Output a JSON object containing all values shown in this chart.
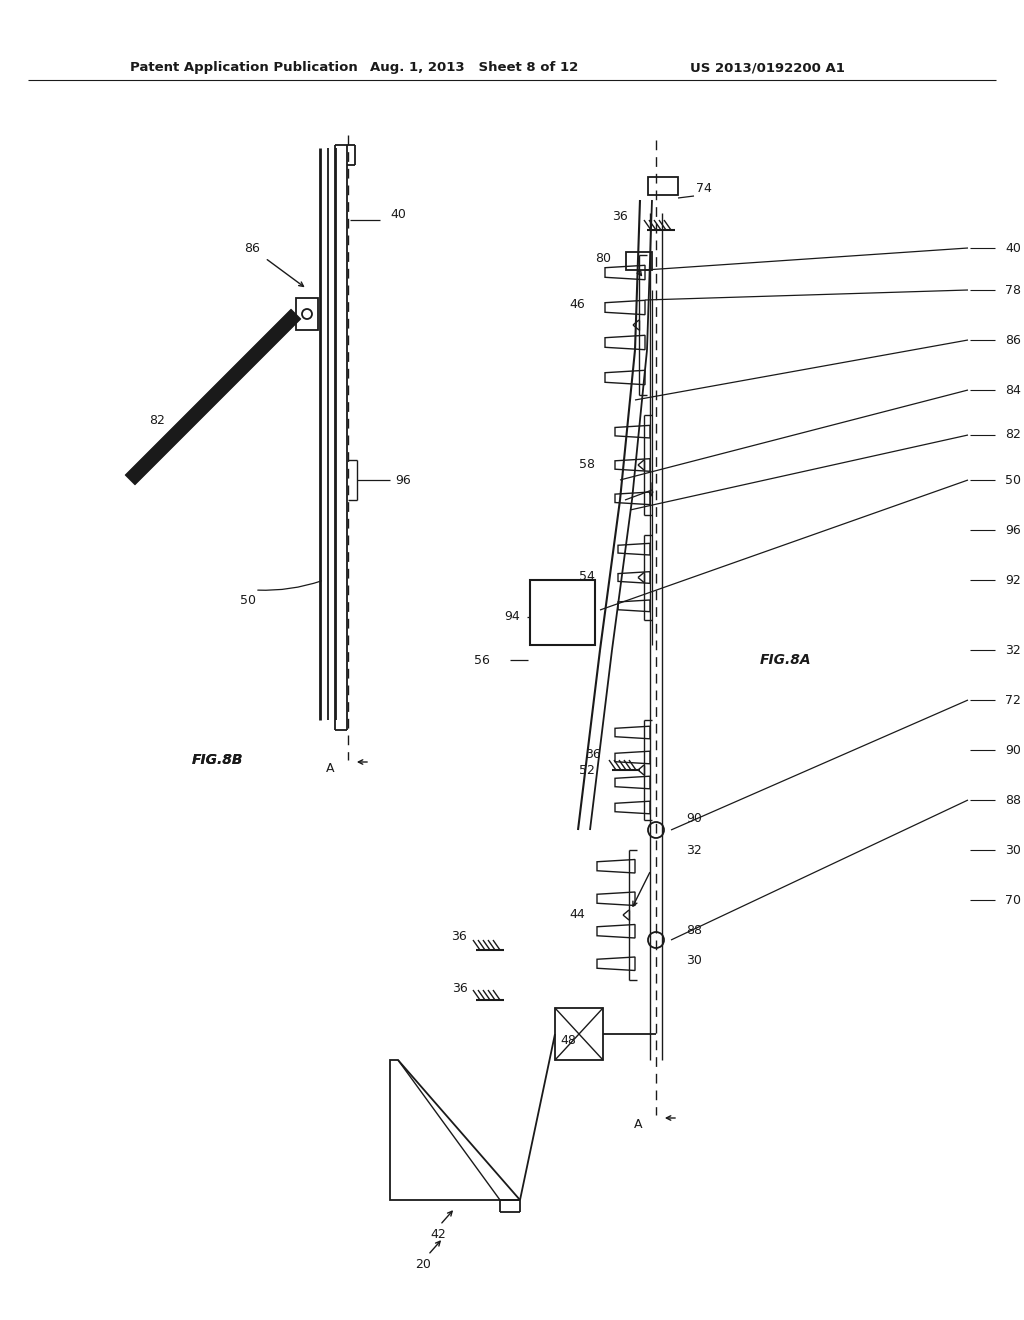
{
  "bg_color": "#ffffff",
  "line_color": "#1a1a1a",
  "header_left": "Patent Application Publication",
  "header_mid": "Aug. 1, 2013   Sheet 8 of 12",
  "header_right": "US 2013/0192200 A1",
  "fig_label_8A": "FIG.8A",
  "fig_label_8B": "FIG.8B"
}
